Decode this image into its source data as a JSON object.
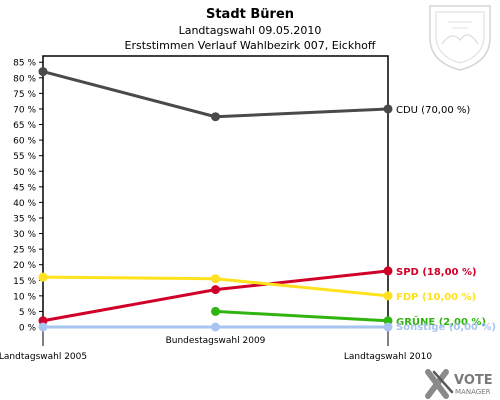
{
  "chart_data": {
    "type": "line",
    "title": "Stadt Büren",
    "subtitle1": "Landtagswahl 09.05.2010",
    "subtitle2": "Erststimmen Verlauf Wahlbezirk 007, Eickhoff",
    "x": [
      "Landtagswahl 2005",
      "Bundestagswahl 2009",
      "Landtagswahl 2010"
    ],
    "ylim": [
      0,
      85
    ],
    "yticks": [
      0,
      5,
      10,
      15,
      20,
      25,
      30,
      35,
      40,
      45,
      50,
      55,
      60,
      65,
      70,
      75,
      80,
      85
    ],
    "ytick_labels": [
      "0 %",
      "5 %",
      "10 %",
      "15 %",
      "20 %",
      "25 %",
      "30 %",
      "35 %",
      "40 %",
      "45 %",
      "50 %",
      "55 %",
      "60 %",
      "65 %",
      "70 %",
      "75 %",
      "80 %",
      "85 %"
    ],
    "grid": false,
    "series": [
      {
        "name": "CDU",
        "color": "#4a4a4a",
        "values": [
          82.0,
          67.5,
          70.0
        ],
        "end_label": "CDU (70,00 %)"
      },
      {
        "name": "SPD",
        "color": "#d1002a",
        "values": [
          2.0,
          12.0,
          18.0
        ],
        "end_label": "SPD (18,00 %)"
      },
      {
        "name": "FDP",
        "color": "#ffe11e",
        "values": [
          16.0,
          15.5,
          10.0
        ],
        "end_label": "FDP (10,00 %)"
      },
      {
        "name": "GRÜNE",
        "color": "#30b410",
        "values": [
          null,
          5.0,
          2.0
        ],
        "end_label": "GRÜNE (2,00 %)"
      },
      {
        "name": "Sonstige",
        "color": "#a8c4f0",
        "values": [
          0.0,
          0.0,
          0.0
        ],
        "end_label": "Sonstige (0,00 %)"
      }
    ]
  },
  "branding": {
    "vote_text": "VOTE",
    "manager_text": "MANAGER",
    "logo_icon": "vote-manager-x-icon",
    "crest_icon": "coat-of-arms-icon"
  }
}
